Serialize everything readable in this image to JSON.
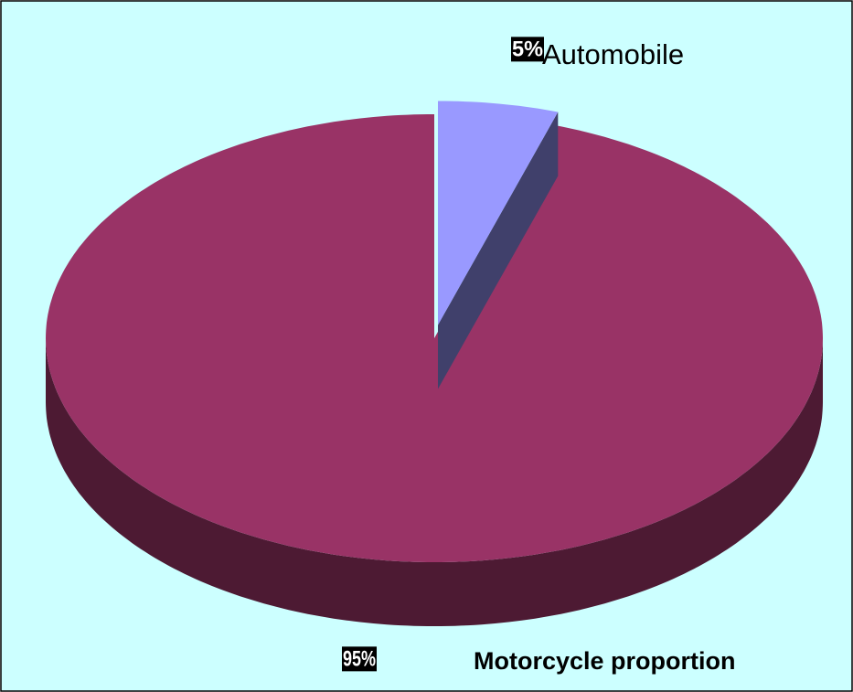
{
  "chart_data": {
    "type": "pie",
    "categories": [
      "Automobile",
      "Motorcycle proportion"
    ],
    "values": [
      5,
      95
    ],
    "value_labels": [
      "5%",
      "95%"
    ],
    "colors": [
      "#9999ff",
      "#993366"
    ],
    "explode": [
      true,
      false
    ]
  }
}
